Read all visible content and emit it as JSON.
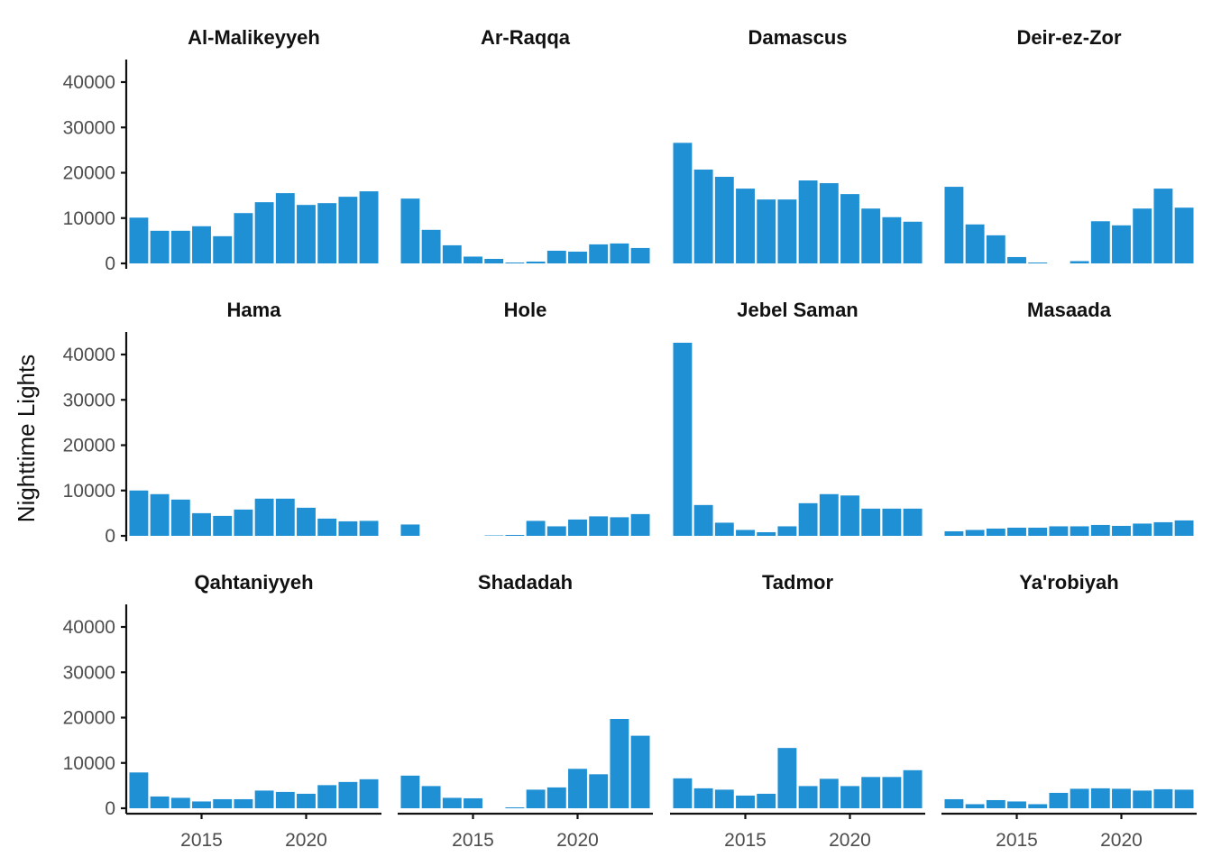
{
  "chart_data": {
    "type": "bar",
    "layout": "facet-grid",
    "ylabel": "Nighttime Lights",
    "xlabel": "",
    "ylim": [
      0,
      45000
    ],
    "yticks": [
      0,
      10000,
      20000,
      30000,
      40000
    ],
    "xticks": [
      2015,
      2020
    ],
    "grid": false,
    "bar_color": "#1f90d4",
    "x": [
      2012,
      2013,
      2014,
      2015,
      2016,
      2017,
      2018,
      2019,
      2020,
      2021,
      2022,
      2023
    ],
    "panels": [
      {
        "name": "Al-Malikeyyeh",
        "values": [
          10100,
          7200,
          7200,
          8200,
          6000,
          11100,
          13500,
          15500,
          12900,
          13300,
          14700,
          15900
        ]
      },
      {
        "name": "Ar-Raqqa",
        "values": [
          14300,
          7400,
          4000,
          1500,
          1000,
          200,
          400,
          2800,
          2600,
          4200,
          4400,
          3400
        ]
      },
      {
        "name": "Damascus",
        "values": [
          26600,
          20700,
          19100,
          16500,
          14100,
          14100,
          18300,
          17700,
          15300,
          12100,
          10200,
          9200
        ]
      },
      {
        "name": "Deir-ez-Zor",
        "values": [
          16900,
          8600,
          6200,
          1400,
          200,
          0,
          500,
          9300,
          8400,
          12100,
          16500,
          12300
        ]
      },
      {
        "name": "Hama",
        "values": [
          10000,
          9200,
          8000,
          5000,
          4400,
          5800,
          8200,
          8200,
          6200,
          3800,
          3200,
          3300
        ]
      },
      {
        "name": "Hole",
        "values": [
          2500,
          0,
          0,
          0,
          100,
          200,
          3300,
          2100,
          3600,
          4300,
          4100,
          4800
        ]
      },
      {
        "name": "Jebel Saman",
        "values": [
          42600,
          6800,
          2900,
          1300,
          800,
          2100,
          7200,
          9200,
          8900,
          6000,
          6000,
          6000
        ]
      },
      {
        "name": "Masaada",
        "values": [
          1000,
          1300,
          1600,
          1800,
          1800,
          2100,
          2100,
          2400,
          2200,
          2700,
          3000,
          3400
        ]
      },
      {
        "name": "Qahtaniyyeh",
        "values": [
          7900,
          2600,
          2300,
          1500,
          2000,
          2000,
          3900,
          3600,
          3200,
          5100,
          5800,
          6400
        ]
      },
      {
        "name": "Shadadah",
        "values": [
          7200,
          4900,
          2300,
          2200,
          0,
          200,
          4100,
          4600,
          8700,
          7500,
          19700,
          16000
        ]
      },
      {
        "name": "Tadmor",
        "values": [
          6600,
          4400,
          4100,
          2800,
          3200,
          13300,
          4900,
          6500,
          4900,
          6900,
          6900,
          8400
        ]
      },
      {
        "name": "Ya'robiyah",
        "values": [
          2000,
          900,
          1800,
          1500,
          900,
          3400,
          4300,
          4400,
          4300,
          3900,
          4200,
          4100
        ]
      }
    ]
  }
}
